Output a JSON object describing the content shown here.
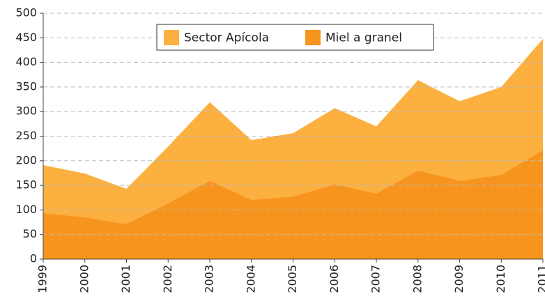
{
  "chart_data": {
    "type": "area",
    "categories": [
      "1999",
      "2000",
      "2001",
      "2002",
      "2003",
      "2004",
      "2005",
      "2006",
      "2007",
      "2008",
      "2009",
      "2010",
      "2011"
    ],
    "series": [
      {
        "name": "Sector Apícola",
        "color": "#fbb040",
        "values": [
          191,
          174,
          143,
          229,
          319,
          242,
          256,
          307,
          270,
          364,
          321,
          350,
          448
        ]
      },
      {
        "name": "Miel a granel",
        "color": "#f7941d",
        "values": [
          93,
          85,
          71,
          113,
          159,
          120,
          127,
          152,
          133,
          180,
          159,
          171,
          221
        ]
      }
    ],
    "ylim": [
      0,
      500
    ],
    "yticks": [
      0,
      50,
      100,
      150,
      200,
      250,
      300,
      350,
      400,
      450,
      500
    ],
    "grid": true,
    "legend": "upper center"
  }
}
